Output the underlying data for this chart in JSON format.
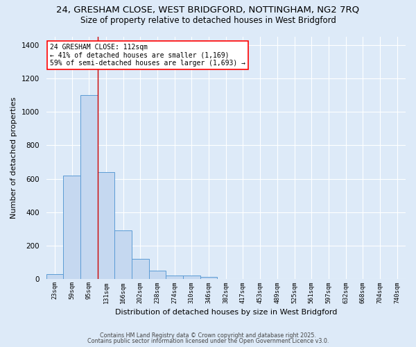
{
  "title_line1": "24, GRESHAM CLOSE, WEST BRIDGFORD, NOTTINGHAM, NG2 7RQ",
  "title_line2": "Size of property relative to detached houses in West Bridgford",
  "xlabel": "Distribution of detached houses by size in West Bridgford",
  "ylabel": "Number of detached properties",
  "bin_labels": [
    "23sqm",
    "59sqm",
    "95sqm",
    "131sqm",
    "166sqm",
    "202sqm",
    "238sqm",
    "274sqm",
    "310sqm",
    "346sqm",
    "382sqm",
    "417sqm",
    "453sqm",
    "489sqm",
    "525sqm",
    "561sqm",
    "597sqm",
    "632sqm",
    "668sqm",
    "704sqm",
    "740sqm"
  ],
  "bar_values": [
    30,
    620,
    1100,
    640,
    290,
    120,
    50,
    22,
    22,
    15,
    0,
    0,
    0,
    0,
    0,
    0,
    0,
    0,
    0,
    0,
    0
  ],
  "bar_color": "#c5d8f0",
  "bar_edge_color": "#5b9bd5",
  "background_color": "#ddeaf8",
  "grid_color": "#e8f0f8",
  "ylim": [
    0,
    1450
  ],
  "yticks": [
    0,
    200,
    400,
    600,
    800,
    1000,
    1200,
    1400
  ],
  "red_line_bin_index": 2,
  "annotation_text": "24 GRESHAM CLOSE: 112sqm\n← 41% of detached houses are smaller (1,169)\n59% of semi-detached houses are larger (1,693) →",
  "footer_line1": "Contains HM Land Registry data © Crown copyright and database right 2025.",
  "footer_line2": "Contains public sector information licensed under the Open Government Licence v3.0."
}
